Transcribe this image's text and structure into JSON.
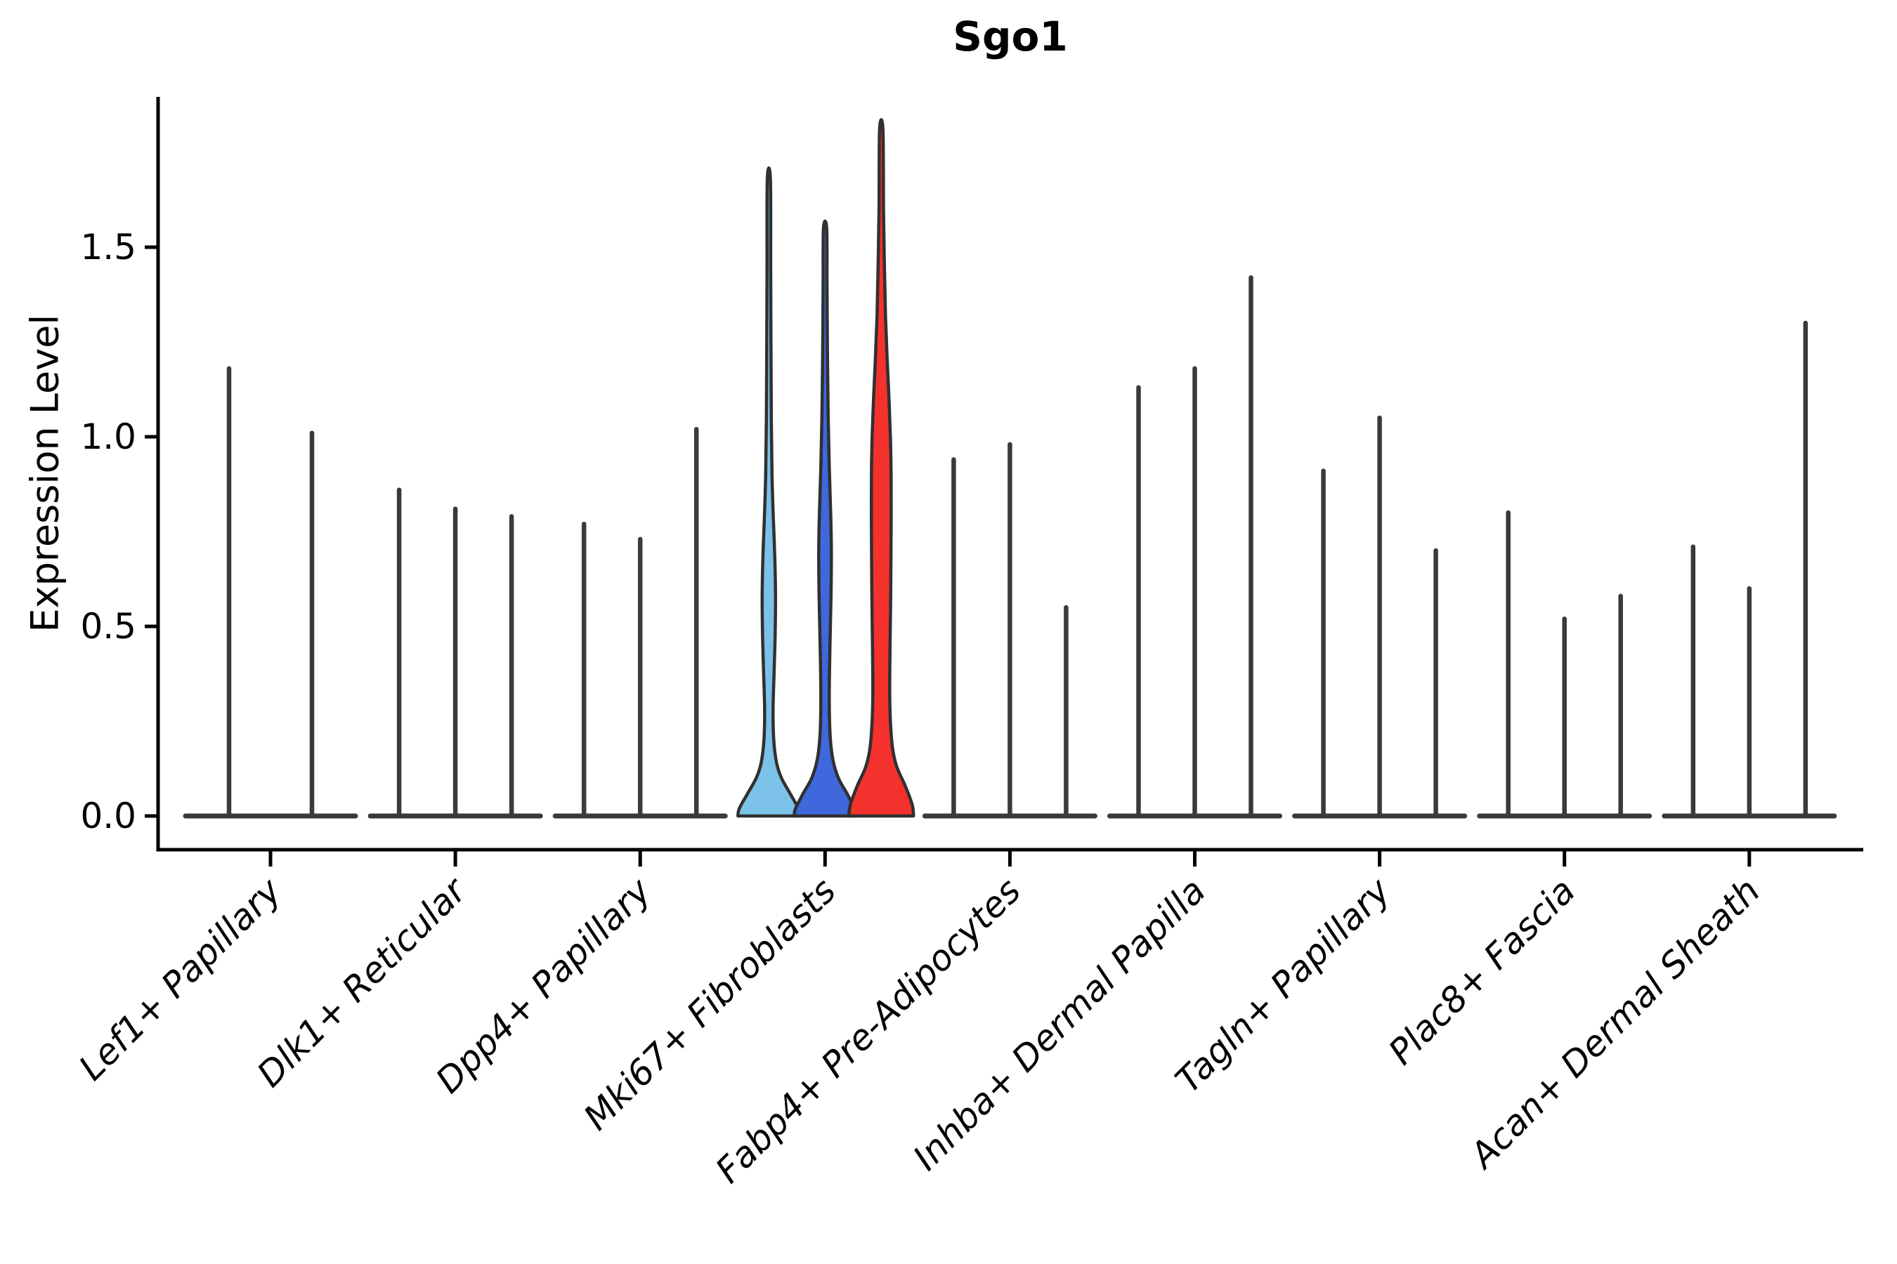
{
  "figure": {
    "title": "Sgo1",
    "ylabel": "Expression Level"
  },
  "chart_data": {
    "type": "violin",
    "title": "Sgo1",
    "xlabel": "",
    "ylabel": "Expression Level",
    "ylim": [
      -0.09,
      1.9
    ],
    "yticks": [
      0.0,
      0.5,
      1.0,
      1.5
    ],
    "ytick_labels": [
      "0.0",
      "0.5",
      "1.0",
      "1.5"
    ],
    "grid": false,
    "legend_position": "none",
    "x_label_rotation_deg": 45,
    "description": "Violin plot of Sgo1 expression; each category shows per-sample violins whose mass is concentrated at 0 with a thin spike to the maximum value; the Mki67+ Fibroblasts violins are highlighted in color.",
    "categories": [
      {
        "label": "Lef1+ Papillary",
        "violin_max_values": [
          1.18,
          1.01
        ]
      },
      {
        "label": "Dlk1+ Reticular",
        "violin_max_values": [
          0.86,
          0.81,
          0.79
        ]
      },
      {
        "label": "Dpp4+ Papillary",
        "violin_max_values": [
          0.77,
          0.73,
          1.02
        ]
      },
      {
        "label": "Mki67+ Fibroblasts",
        "violin_max_values": [
          1.68,
          1.55,
          1.81
        ],
        "highlight_colors": [
          "#7CC1E8",
          "#3E68DB",
          "#F4312D"
        ]
      },
      {
        "label": "Fabp4+ Pre-Adipocytes",
        "violin_max_values": [
          0.94,
          0.98,
          0.55
        ]
      },
      {
        "label": "Inhba+ Dermal Papilla",
        "violin_max_values": [
          1.13,
          1.18,
          1.42
        ]
      },
      {
        "label": "Tagln+ Papillary",
        "violin_max_values": [
          0.91,
          1.05,
          0.7
        ]
      },
      {
        "label": "Plac8+ Fascia",
        "violin_max_values": [
          0.8,
          0.52,
          0.58
        ]
      },
      {
        "label": "Acan+ Dermal Sheath",
        "violin_max_values": [
          0.71,
          0.6,
          1.3
        ]
      }
    ],
    "highlight_profiles": {
      "comment_units": "pairs of [expression_value, half_width_px]",
      "violin_0": [
        [
          0,
          44
        ],
        [
          0.02,
          42
        ],
        [
          0.06,
          30
        ],
        [
          0.1,
          18
        ],
        [
          0.14,
          11
        ],
        [
          0.2,
          7
        ],
        [
          0.28,
          6
        ],
        [
          0.38,
          7.5
        ],
        [
          0.48,
          9
        ],
        [
          0.58,
          9.5
        ],
        [
          0.68,
          8.5
        ],
        [
          0.78,
          6.5
        ],
        [
          0.9,
          4.5
        ],
        [
          1.05,
          3.5
        ],
        [
          1.25,
          3
        ],
        [
          1.45,
          2.6
        ],
        [
          1.68,
          2.2
        ]
      ],
      "violin_1": [
        [
          0,
          44
        ],
        [
          0.02,
          42
        ],
        [
          0.06,
          31
        ],
        [
          0.1,
          19
        ],
        [
          0.15,
          11
        ],
        [
          0.22,
          7
        ],
        [
          0.32,
          6
        ],
        [
          0.45,
          7
        ],
        [
          0.58,
          8.5
        ],
        [
          0.7,
          9
        ],
        [
          0.8,
          8
        ],
        [
          0.92,
          6
        ],
        [
          1.05,
          4.5
        ],
        [
          1.2,
          3.5
        ],
        [
          1.4,
          2.8
        ],
        [
          1.55,
          2.3
        ]
      ],
      "violin_2": [
        [
          0,
          46
        ],
        [
          0.03,
          44
        ],
        [
          0.08,
          34
        ],
        [
          0.13,
          22
        ],
        [
          0.18,
          16
        ],
        [
          0.25,
          13
        ],
        [
          0.33,
          12
        ],
        [
          0.45,
          12.5
        ],
        [
          0.6,
          13.5
        ],
        [
          0.75,
          14
        ],
        [
          0.9,
          14
        ],
        [
          1.0,
          13
        ],
        [
          1.1,
          11
        ],
        [
          1.2,
          8.5
        ],
        [
          1.32,
          6
        ],
        [
          1.45,
          4.5
        ],
        [
          1.6,
          3.2
        ],
        [
          1.81,
          2.4
        ]
      ]
    },
    "colors": {
      "violin_outline": "#303030",
      "spike_line": "#3a3a3a",
      "axis": "#000000",
      "background": "#ffffff"
    }
  }
}
